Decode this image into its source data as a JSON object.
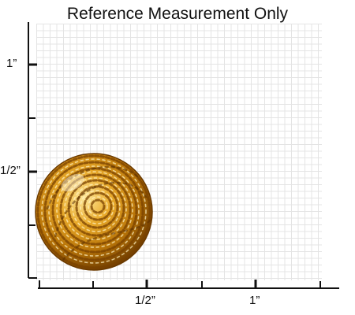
{
  "title": "Reference Measurement Only",
  "y_axis": {
    "labels": [
      "1”",
      "1/2”"
    ]
  },
  "x_axis": {
    "labels": [
      "1/2”",
      "1”"
    ]
  },
  "product": {
    "name": "gold-rope-knot-button"
  },
  "colors": {
    "gold_dark": "#6b3a00",
    "gold_mid": "#c98a10",
    "gold_light": "#ffe89a"
  }
}
